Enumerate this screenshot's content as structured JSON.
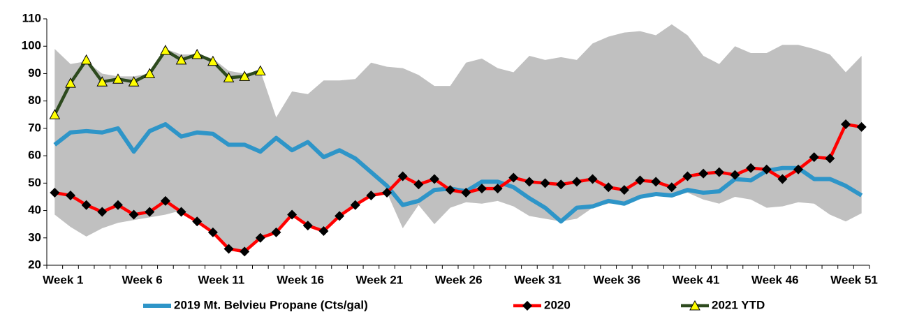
{
  "chart_data": {
    "type": "line",
    "categories": [
      "Week 1",
      null,
      null,
      null,
      null,
      "Week 6",
      null,
      null,
      null,
      null,
      "Week 11",
      null,
      null,
      null,
      null,
      "Week 16",
      null,
      null,
      null,
      null,
      "Week 21",
      null,
      null,
      null,
      null,
      "Week 26",
      null,
      null,
      null,
      null,
      "Week 31",
      null,
      null,
      null,
      null,
      "Week 36",
      null,
      null,
      null,
      null,
      "Week 41",
      null,
      null,
      null,
      null,
      "Week 46",
      null,
      null,
      null,
      null,
      "Week 51",
      null
    ],
    "range": {
      "color": "#c0c0c0",
      "upper": [
        99,
        93.5,
        94.5,
        90,
        89,
        89,
        90,
        99,
        97,
        97,
        95.5,
        91,
        90,
        91,
        74,
        83.5,
        82.5,
        87.5,
        87.5,
        88,
        94,
        92.5,
        92,
        89.5,
        85.5,
        85.5,
        94,
        95.5,
        92,
        90.5,
        96.5,
        95,
        96,
        95,
        101,
        103.5,
        105,
        105.5,
        104,
        108,
        104,
        96.5,
        93.5,
        100,
        97.5,
        97.5,
        100.5,
        100.5,
        99,
        97,
        90.5,
        96.5
      ],
      "lower": [
        38.5,
        34,
        30.5,
        33.5,
        35.5,
        36.5,
        37.5,
        38.5,
        40,
        36,
        32,
        26,
        25,
        30,
        32,
        38.5,
        34.5,
        32.5,
        38,
        42,
        45.5,
        46.5,
        33.5,
        42,
        35,
        41,
        43,
        42.5,
        43.5,
        41.5,
        38,
        37,
        36,
        37,
        41,
        42.5,
        42.5,
        44.5,
        45.5,
        45,
        46.5,
        44,
        42.5,
        45,
        44,
        41,
        41.5,
        43,
        42.5,
        38.5,
        36,
        39
      ]
    },
    "series": [
      {
        "name": "2019 Mt. Belvieu Propane (Cts/gal)",
        "color": "#2e95c8",
        "marker": "none",
        "values": [
          64,
          68.5,
          69,
          68.5,
          70,
          61.5,
          69,
          71.5,
          67,
          68.5,
          68,
          64,
          64,
          61.5,
          66.5,
          62,
          65,
          59.5,
          62,
          59,
          54,
          49,
          42,
          43.5,
          47.5,
          48,
          47,
          50.5,
          50.5,
          48.5,
          44.5,
          41,
          36,
          41,
          41.5,
          43.5,
          42.5,
          45,
          46,
          45.5,
          47.5,
          46.5,
          47,
          51.5,
          51,
          54.5,
          55.5,
          55.5,
          51.5,
          51.5,
          49,
          45.5
        ]
      },
      {
        "name": "2020",
        "color": "#ff0000",
        "marker": "diamond",
        "marker_color": "#000000",
        "values": [
          46.5,
          45.5,
          42,
          39.5,
          42,
          38.5,
          39.5,
          43.5,
          39.5,
          36,
          32,
          26,
          25,
          30,
          32,
          38.5,
          34.5,
          32.5,
          38,
          42,
          45.5,
          46.5,
          52.5,
          49.5,
          51.5,
          47.5,
          46.5,
          48,
          48,
          52,
          50.5,
          50,
          49.5,
          50.5,
          51.5,
          48.5,
          47.5,
          51,
          50.5,
          48.5,
          52.5,
          53.5,
          54,
          53,
          55.5,
          55,
          51.5,
          55,
          59.5,
          59,
          71.5,
          70.5
        ]
      },
      {
        "name": "2021 YTD",
        "color": "#2d4a1e",
        "marker": "triangle",
        "marker_color": "#ffff00",
        "values": [
          75,
          86.5,
          95,
          87,
          88,
          87,
          90,
          98.5,
          95,
          97,
          94.5,
          88.5,
          89,
          91,
          null,
          null,
          null,
          null,
          null,
          null,
          null,
          null,
          null,
          null,
          null,
          null,
          null,
          null,
          null,
          null,
          null,
          null,
          null,
          null,
          null,
          null,
          null,
          null,
          null,
          null,
          null,
          null,
          null,
          null,
          null,
          null,
          null,
          null,
          null,
          null,
          null,
          null
        ]
      }
    ],
    "ylim": [
      20,
      110
    ],
    "yticks": [
      20,
      30,
      40,
      50,
      60,
      70,
      80,
      90,
      100,
      110
    ],
    "grid": false,
    "legend": "bottom"
  }
}
